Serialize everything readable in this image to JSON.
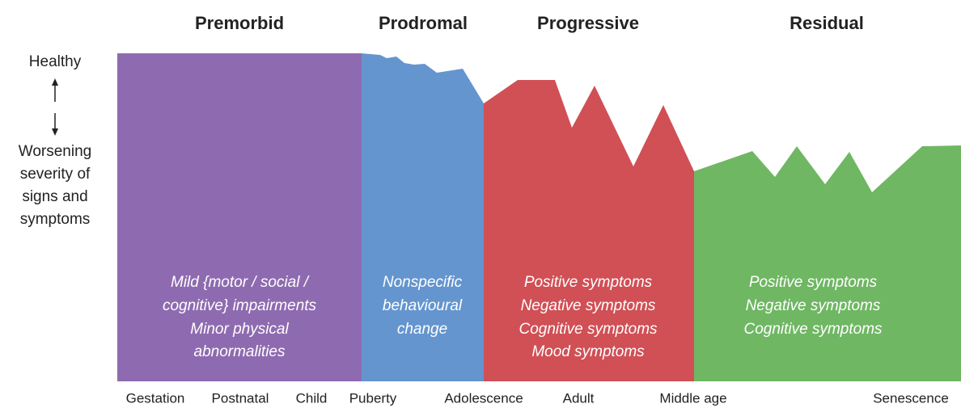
{
  "phases": [
    {
      "title": "Premorbid",
      "description": [
        "Mild {motor / social /",
        "cognitive} impairments",
        "Minor physical",
        "abnormalities"
      ]
    },
    {
      "title": "Prodromal",
      "description": [
        "Nonspecific",
        "behavioural",
        "change"
      ]
    },
    {
      "title": "Progressive",
      "description": [
        "Positive symptoms",
        "Negative symptoms",
        "Cognitive symptoms",
        "Mood symptoms"
      ]
    },
    {
      "title": "Residual",
      "description": [
        "Positive symptoms",
        "Negative symptoms",
        "Cognitive symptoms"
      ]
    }
  ],
  "y_axis": {
    "top": "Healthy",
    "bottom": [
      "Worsening",
      "severity of",
      "signs and",
      "symptoms"
    ]
  },
  "x_axis": {
    "labels": [
      "Gestation",
      "Postnatal",
      "Child",
      "Puberty",
      "Adolescence",
      "Adult",
      "Middle age",
      "Senescence"
    ]
  }
}
